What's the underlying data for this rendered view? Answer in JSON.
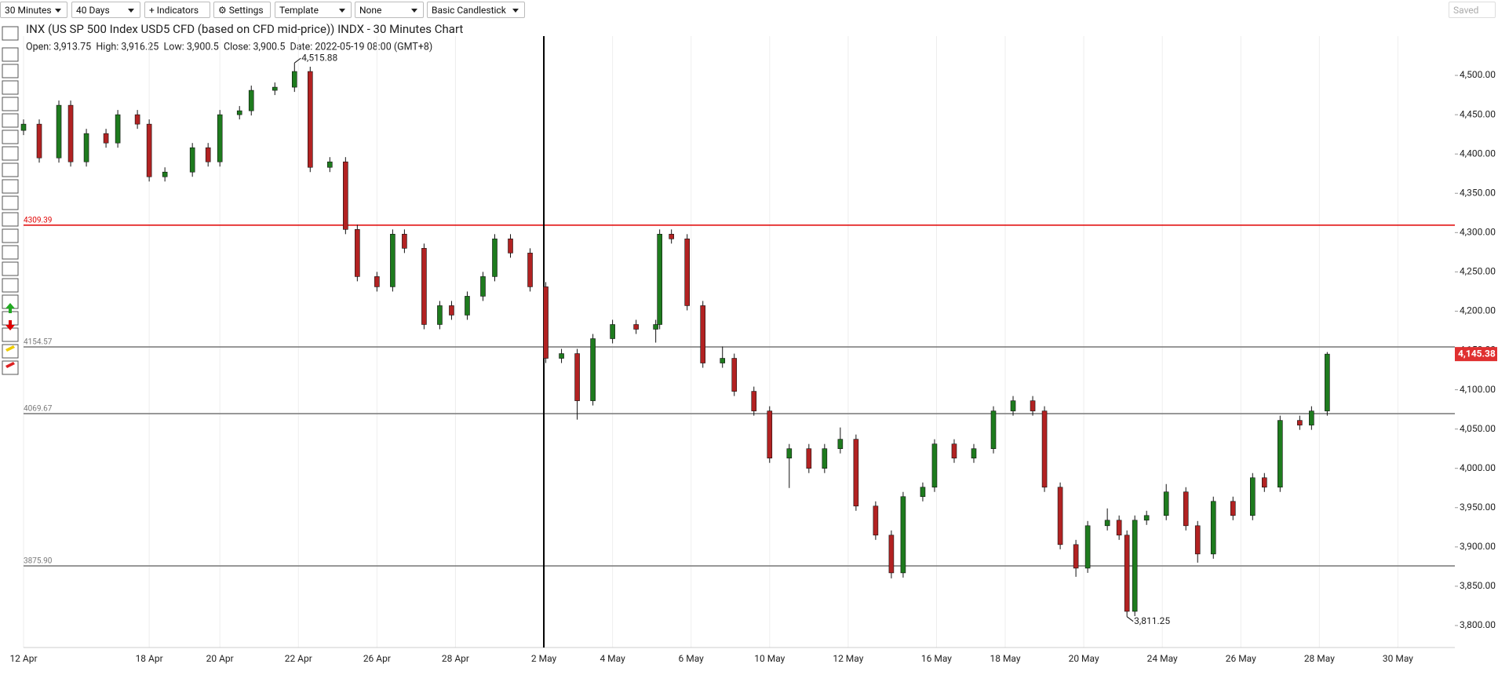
{
  "toolbar": {
    "buttons": [
      "30 Minutes",
      "40 Days",
      "+ Indicators",
      "⚙ Settings",
      "Template",
      "None",
      "Basic Candlestick"
    ],
    "saved": "Saved"
  },
  "chart_data": {
    "type": "candlestick",
    "title": "INX (US SP 500 Index USD5 CFD (based on CFD mid-price)) INDX - 30 Minutes Chart",
    "info": "Open: 3,913.75  High: 3,916.25  Low: 3,900.5  Close: 3,900.5  Date: 2022-05-19 08:00 (GMT+8)",
    "x": [
      0.0,
      0.4,
      0.9,
      1.2,
      1.6,
      2.1,
      2.4,
      2.9,
      3.2,
      3.6,
      4.3,
      4.7,
      5.0,
      5.5,
      5.8,
      6.4,
      6.9,
      7.3,
      7.8,
      8.2,
      8.5,
      9.0,
      9.4,
      9.7,
      10.2,
      10.6,
      10.9,
      11.3,
      11.7,
      12.0,
      12.4,
      12.9,
      13.3,
      13.7,
      14.1,
      14.5,
      15.0,
      15.6,
      16.1,
      16.2,
      16.5,
      16.9,
      17.3,
      17.8,
      18.1,
      18.6,
      19.0,
      19.5,
      20.0,
      20.4,
      20.8,
      21.2,
      21.7,
      22.1,
      22.4,
      22.9,
      23.2,
      23.7,
      24.2,
      24.7,
      25.2,
      25.7,
      26.0,
      26.4,
      26.8,
      27.1,
      27.6,
      27.9,
      28.1,
      28.3,
      28.6,
      29.1,
      29.6,
      29.9,
      30.3,
      30.8,
      31.3,
      31.6,
      32.0,
      32.5,
      32.8,
      33.2
    ],
    "open": [
      4430,
      4438,
      4395,
      4462,
      4390,
      4426,
      4414,
      4450,
      4438,
      4371,
      4377,
      4408,
      4390,
      4450,
      4455,
      4481,
      4485,
      4505,
      4383,
      4390,
      4304,
      4244,
      4231,
      4298,
      4280,
      4183,
      4207,
      4195,
      4219,
      4244,
      4292,
      4274,
      4231,
      4140,
      4146,
      4086,
      4165,
      4183,
      4177,
      4183,
      4298,
      4292,
      4207,
      4134,
      4140,
      4098,
      4073,
      4013,
      4025,
      4000,
      4025,
      4037,
      3952,
      3915,
      3867,
      3964,
      3976,
      4031,
      4013,
      4025,
      4073,
      4086,
      4073,
      3976,
      3903,
      3873,
      3927,
      3934,
      3915,
      3818,
      3934,
      3940,
      3970,
      3927,
      3891,
      3958,
      3940,
      3988,
      3976,
      4061,
      4055,
      4073
    ],
    "high": [
      4444,
      4444,
      4468,
      4468,
      4432,
      4432,
      4456,
      4456,
      4444,
      4383,
      4414,
      4414,
      4456,
      4461,
      4487,
      4491,
      4515.88,
      4511,
      4396,
      4396,
      4310,
      4250,
      4304,
      4304,
      4286,
      4213,
      4213,
      4225,
      4250,
      4298,
      4298,
      4280,
      4237,
      4152,
      4152,
      4171,
      4189,
      4189,
      4189,
      4304,
      4304,
      4298,
      4213,
      4155,
      4146,
      4104,
      4079,
      4031,
      4031,
      4031,
      4052,
      4043,
      3958,
      3921,
      3970,
      3982,
      4037,
      4037,
      4031,
      4079,
      4092,
      4092,
      4079,
      3982,
      3909,
      3933,
      3949,
      3940,
      3921,
      3940,
      3946,
      3980,
      3976,
      3933,
      3964,
      3964,
      3994,
      3994,
      4067,
      4067,
      4079,
      4148
    ],
    "low": [
      4424,
      4389,
      4389,
      4384,
      4384,
      4408,
      4408,
      4432,
      4365,
      4365,
      4371,
      4384,
      4384,
      4444,
      4449,
      4475,
      4479,
      4377,
      4377,
      4298,
      4238,
      4225,
      4225,
      4274,
      4177,
      4177,
      4189,
      4189,
      4213,
      4238,
      4268,
      4225,
      4134,
      4134,
      4062,
      4080,
      4159,
      4171,
      4160,
      4177,
      4286,
      4201,
      4128,
      4128,
      4092,
      4067,
      4007,
      3975,
      3994,
      3994,
      4019,
      3946,
      3909,
      3860,
      3861,
      3958,
      3970,
      4007,
      4007,
      4019,
      4067,
      4067,
      3970,
      3897,
      3862,
      3867,
      3921,
      3909,
      3811.25,
      3812,
      3928,
      3934,
      3921,
      3880,
      3885,
      3934,
      3934,
      3970,
      3970,
      4049,
      4049,
      4067
    ],
    "close": [
      4438,
      4395,
      4462,
      4390,
      4426,
      4414,
      4450,
      4438,
      4371,
      4377,
      4408,
      4390,
      4450,
      4455,
      4481,
      4485,
      4505,
      4383,
      4390,
      4304,
      4244,
      4231,
      4298,
      4280,
      4183,
      4207,
      4195,
      4219,
      4244,
      4292,
      4274,
      4231,
      4140,
      4146,
      4086,
      4165,
      4183,
      4177,
      4183,
      4298,
      4292,
      4207,
      4134,
      4140,
      4098,
      4073,
      4013,
      4025,
      4000,
      4025,
      4037,
      3952,
      3915,
      3867,
      3964,
      3976,
      4031,
      4013,
      4025,
      4073,
      4086,
      4073,
      3976,
      3903,
      3873,
      3927,
      3934,
      3915,
      3818,
      3934,
      3940,
      3970,
      3927,
      3891,
      3958,
      3940,
      3988,
      3976,
      4061,
      4055,
      4073,
      4145.38
    ],
    "up_color": "#1e7b1e",
    "down_color": "#b22222",
    "last_price": {
      "value": 4145.38,
      "label": "4,145.38"
    },
    "annotations": [
      {
        "x": 6.9,
        "value": 4515.88,
        "label": "4,515.88"
      },
      {
        "x": 28.1,
        "value": 3811.25,
        "label": "3,811.25"
      }
    ],
    "hlines": [
      {
        "value": 4309.39,
        "label": "4309.39",
        "color": "#e00000"
      },
      {
        "value": 4154.57,
        "label": "4154.57",
        "color": "#777777"
      },
      {
        "value": 4069.67,
        "label": "4069.67",
        "color": "#777777"
      },
      {
        "value": 3875.9,
        "label": "3875.90",
        "color": "#777777"
      }
    ],
    "crosshair_x": 13.25,
    "xlim": [
      0,
      36.45
    ],
    "xticks": [
      {
        "value": 0,
        "label": "12 Apr"
      },
      {
        "value": 3.2,
        "label": "18 Apr"
      },
      {
        "value": 5,
        "label": "20 Apr"
      },
      {
        "value": 7,
        "label": "22 Apr"
      },
      {
        "value": 9,
        "label": "26 Apr"
      },
      {
        "value": 11,
        "label": "28 Apr"
      },
      {
        "value": 13.25,
        "label": "2 May"
      },
      {
        "value": 15,
        "label": "4 May"
      },
      {
        "value": 17,
        "label": "6 May"
      },
      {
        "value": 19,
        "label": "10 May"
      },
      {
        "value": 21,
        "label": "12 May"
      },
      {
        "value": 23.25,
        "label": "16 May"
      },
      {
        "value": 25,
        "label": "18 May"
      },
      {
        "value": 27,
        "label": "20 May"
      },
      {
        "value": 29,
        "label": "24 May"
      },
      {
        "value": 31,
        "label": "26 May"
      },
      {
        "value": 33,
        "label": "28 May"
      },
      {
        "value": 35,
        "label": "30 May"
      }
    ],
    "ylim": [
      3772,
      4550
    ],
    "yticks": [
      {
        "value": 3800,
        "label": "3,800.00"
      },
      {
        "value": 3850,
        "label": "3,850.00"
      },
      {
        "value": 3900,
        "label": "3,900.00"
      },
      {
        "value": 3950,
        "label": "3,950.00"
      },
      {
        "value": 4000,
        "label": "4,000.00"
      },
      {
        "value": 4050,
        "label": "4,050.00"
      },
      {
        "value": 4100,
        "label": "4,100.00"
      },
      {
        "value": 4150,
        "label": "4,150.00"
      },
      {
        "value": 4200,
        "label": "4,200.00"
      },
      {
        "value": 4250,
        "label": "4,250.00"
      },
      {
        "value": 4300,
        "label": "4,300.00"
      },
      {
        "value": 4350,
        "label": "4,350.00"
      },
      {
        "value": 4400,
        "label": "4,400.00"
      },
      {
        "value": 4450,
        "label": "4,450.00"
      },
      {
        "value": 4500,
        "label": "4,500.00"
      }
    ],
    "grid": true
  }
}
